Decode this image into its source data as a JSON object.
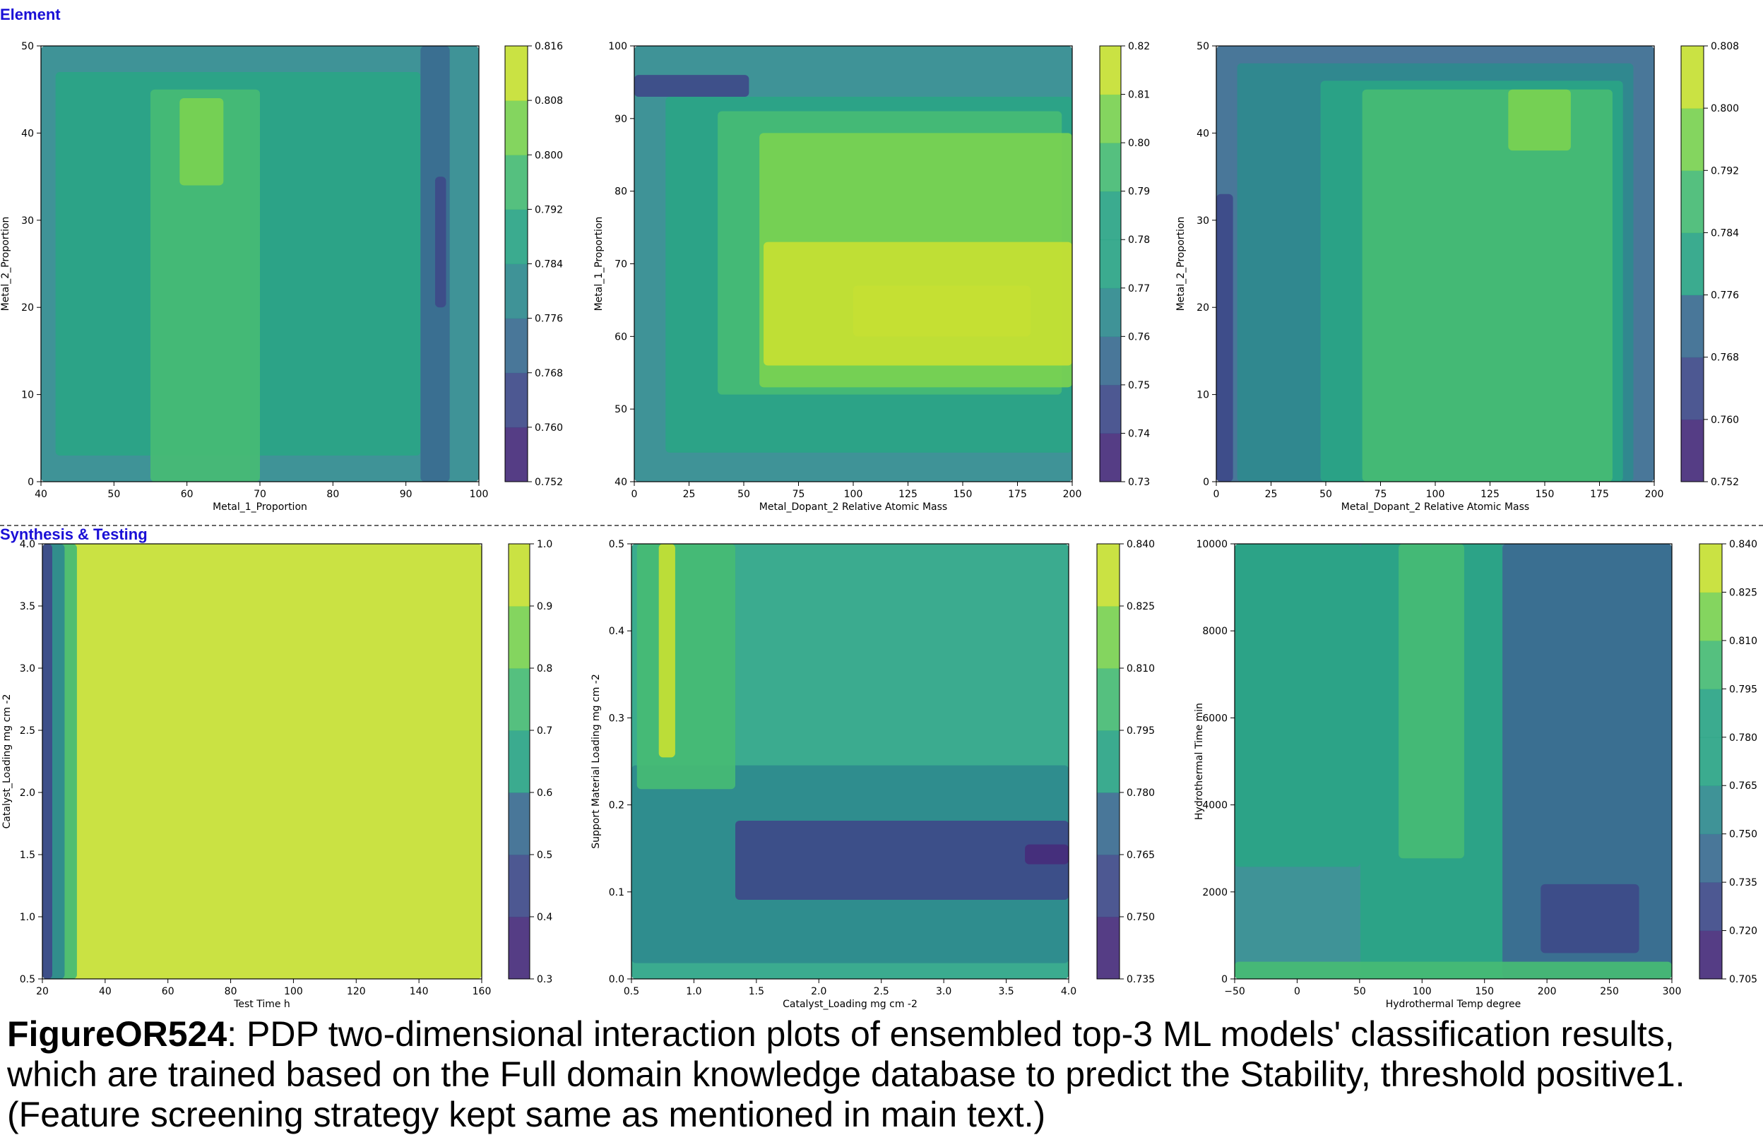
{
  "sections": {
    "top": "Element",
    "bottom": "Synthesis & Testing"
  },
  "caption": {
    "figure_id": "FigureOR524",
    "text": ": PDP two-dimensional interaction plots of ensembled top-3 ML models' classification results, which are trained based on the Full domain knowledge database to predict the Stability, threshold positive1. (Feature screening strategy kept same as mentioned in main text.)"
  },
  "colors": {
    "levels": [
      "#472d7b",
      "#3e4a89",
      "#3a6b90",
      "#2f8a8e",
      "#2aa485",
      "#46bb74",
      "#79d151",
      "#c6df33"
    ],
    "section_label": "#1a0fd6"
  },
  "chart_data": [
    {
      "type": "heatmap",
      "xlabel": "Metal_1_Proportion",
      "ylabel": "Metal_2_Proportion",
      "xlim": [
        40,
        100
      ],
      "ylim": [
        0,
        50
      ],
      "xticks": [
        "40",
        "50",
        "60",
        "70",
        "80",
        "90",
        "100"
      ],
      "yticks": [
        "0",
        "10",
        "20",
        "30",
        "40",
        "50"
      ],
      "colorbar_ticks": [
        "0.752",
        "0.760",
        "0.768",
        "0.776",
        "0.784",
        "0.792",
        "0.800",
        "0.808",
        "0.816"
      ],
      "regions": [
        {
          "x": [
            40,
            100
          ],
          "y": [
            0,
            50
          ],
          "level": 3
        },
        {
          "x": [
            42,
            92
          ],
          "y": [
            3,
            47
          ],
          "level": 4
        },
        {
          "x": [
            55,
            70
          ],
          "y": [
            0,
            45
          ],
          "level": 5
        },
        {
          "x": [
            59,
            65
          ],
          "y": [
            34,
            44
          ],
          "level": 6
        },
        {
          "x": [
            92,
            96
          ],
          "y": [
            0,
            50
          ],
          "level": 2
        },
        {
          "x": [
            94,
            95.5
          ],
          "y": [
            20,
            35
          ],
          "level": 1
        }
      ]
    },
    {
      "type": "heatmap",
      "xlabel": "Metal_Dopant_2 Relative Atomic Mass",
      "ylabel": "Metal_1_Proportion",
      "xlim": [
        0,
        210
      ],
      "ylim": [
        40,
        100
      ],
      "xticks": [
        "0",
        "25",
        "50",
        "75",
        "100",
        "125",
        "150",
        "175",
        "200"
      ],
      "yticks": [
        "40",
        "50",
        "60",
        "70",
        "80",
        "90",
        "100"
      ],
      "colorbar_ticks": [
        "0.73",
        "0.74",
        "0.75",
        "0.76",
        "0.77",
        "0.78",
        "0.79",
        "0.80",
        "0.81",
        "0.82"
      ],
      "regions": [
        {
          "x": [
            0,
            210
          ],
          "y": [
            40,
            100
          ],
          "level": 3
        },
        {
          "x": [
            15,
            210
          ],
          "y": [
            44,
            93
          ],
          "level": 4
        },
        {
          "x": [
            40,
            205
          ],
          "y": [
            52,
            91
          ],
          "level": 5
        },
        {
          "x": [
            60,
            210
          ],
          "y": [
            53,
            88
          ],
          "level": 6
        },
        {
          "x": [
            62,
            210
          ],
          "y": [
            56,
            73
          ],
          "level": 7
        },
        {
          "x": [
            105,
            190
          ],
          "y": [
            60,
            67
          ],
          "level": 8
        },
        {
          "x": [
            0,
            55
          ],
          "y": [
            93,
            96
          ],
          "level": 1
        }
      ]
    },
    {
      "type": "heatmap",
      "xlabel": "Metal_Dopant_2 Relative Atomic Mass",
      "ylabel": "Metal_2_Proportion",
      "xlim": [
        0,
        210
      ],
      "ylim": [
        0,
        50
      ],
      "xticks": [
        "0",
        "25",
        "50",
        "75",
        "100",
        "125",
        "150",
        "175",
        "200"
      ],
      "yticks": [
        "0",
        "10",
        "20",
        "30",
        "40",
        "50"
      ],
      "colorbar_ticks": [
        "0.752",
        "0.760",
        "0.768",
        "0.776",
        "0.784",
        "0.792",
        "0.800",
        "0.808"
      ],
      "regions": [
        {
          "x": [
            0,
            210
          ],
          "y": [
            0,
            50
          ],
          "level": 2
        },
        {
          "x": [
            10,
            200
          ],
          "y": [
            0,
            48
          ],
          "level": 3
        },
        {
          "x": [
            50,
            195
          ],
          "y": [
            0,
            46
          ],
          "level": 4
        },
        {
          "x": [
            70,
            190
          ],
          "y": [
            0,
            45
          ],
          "level": 5
        },
        {
          "x": [
            140,
            170
          ],
          "y": [
            38,
            45
          ],
          "level": 6
        },
        {
          "x": [
            0,
            8
          ],
          "y": [
            0,
            33
          ],
          "level": 1
        }
      ]
    },
    {
      "type": "heatmap",
      "xlabel": "Test Time h",
      "ylabel": "Catalyst_Loading mg cm -2",
      "xlim": [
        0,
        178
      ],
      "ylim": [
        0,
        4.0
      ],
      "xticks": [
        "20",
        "40",
        "60",
        "80",
        "100",
        "120",
        "140",
        "160"
      ],
      "yticks": [
        "0.5",
        "1.0",
        "1.5",
        "2.0",
        "2.5",
        "3.0",
        "3.5",
        "4.0"
      ],
      "colorbar_ticks": [
        "0.3",
        "0.4",
        "0.5",
        "0.6",
        "0.7",
        "0.8",
        "0.9",
        "1.0"
      ],
      "regions": [
        {
          "x": [
            0,
            178
          ],
          "y": [
            0,
            4.0
          ],
          "level": 7
        },
        {
          "x": [
            0,
            14
          ],
          "y": [
            0,
            4.0
          ],
          "level": 5
        },
        {
          "x": [
            0,
            9
          ],
          "y": [
            0,
            4.0
          ],
          "level": 3
        },
        {
          "x": [
            0,
            4
          ],
          "y": [
            0,
            4.0
          ],
          "level": 1
        }
      ]
    },
    {
      "type": "heatmap",
      "xlabel": "Catalyst_Loading mg cm -2",
      "ylabel": "Support Material Loading mg cm -2",
      "xlim": [
        0,
        4.0
      ],
      "ylim": [
        0,
        0.55
      ],
      "xticks": [
        "0.5",
        "1.0",
        "1.5",
        "2.0",
        "2.5",
        "3.0",
        "3.5",
        "4.0"
      ],
      "yticks": [
        "0.0",
        "0.1",
        "0.2",
        "0.3",
        "0.4",
        "0.5"
      ],
      "colorbar_ticks": [
        "0.735",
        "0.750",
        "0.765",
        "0.780",
        "0.795",
        "0.810",
        "0.825",
        "0.840"
      ],
      "regions": [
        {
          "x": [
            0,
            4.0
          ],
          "y": [
            0,
            0.55
          ],
          "level": 4
        },
        {
          "x": [
            0,
            4.0
          ],
          "y": [
            0.02,
            0.27
          ],
          "level": 3
        },
        {
          "x": [
            0.95,
            4.0
          ],
          "y": [
            0.1,
            0.2
          ],
          "level": 1
        },
        {
          "x": [
            3.6,
            4.0
          ],
          "y": [
            0.145,
            0.17
          ],
          "level": 0
        },
        {
          "x": [
            0.05,
            0.95
          ],
          "y": [
            0.24,
            0.55
          ],
          "level": 5
        },
        {
          "x": [
            0.25,
            0.4
          ],
          "y": [
            0.28,
            0.55
          ],
          "level": 7
        }
      ]
    },
    {
      "type": "heatmap",
      "xlabel": "Hydrothermal Temp degree",
      "ylabel": "Hydrothermal Time min",
      "xlim": [
        -80,
        320
      ],
      "ylim": [
        0,
        10100
      ],
      "xticks": [
        "−50",
        "0",
        "50",
        "100",
        "150",
        "200",
        "250",
        "300"
      ],
      "yticks": [
        "0",
        "2000",
        "4000",
        "6000",
        "8000",
        "10000"
      ],
      "colorbar_ticks": [
        "0.705",
        "0.720",
        "0.735",
        "0.750",
        "0.765",
        "0.780",
        "0.795",
        "0.810",
        "0.825",
        "0.840"
      ],
      "regions": [
        {
          "x": [
            -80,
            320
          ],
          "y": [
            0,
            10100
          ],
          "level": 3
        },
        {
          "x": [
            -80,
            35
          ],
          "y": [
            2600,
            10100
          ],
          "level": 4
        },
        {
          "x": [
            35,
            165
          ],
          "y": [
            0,
            10100
          ],
          "level": 4
        },
        {
          "x": [
            70,
            130
          ],
          "y": [
            2800,
            10100
          ],
          "level": 5
        },
        {
          "x": [
            165,
            320
          ],
          "y": [
            0,
            10100
          ],
          "level": 2
        },
        {
          "x": [
            200,
            290
          ],
          "y": [
            600,
            2200
          ],
          "level": 1
        },
        {
          "x": [
            -80,
            320
          ],
          "y": [
            0,
            400
          ],
          "level": 5
        }
      ]
    }
  ]
}
